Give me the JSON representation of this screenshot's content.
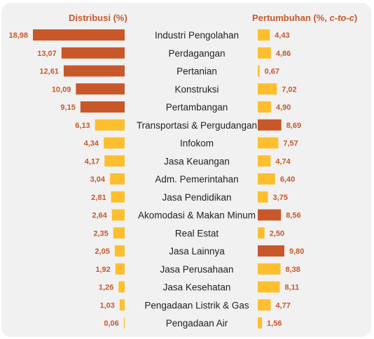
{
  "chart_data": {
    "type": "bar",
    "left_title": "Distribusi (%)",
    "right_title_prefix": "Pertumbuhan (%, ",
    "right_title_italic": "c-to-c",
    "right_title_suffix": ")",
    "categories": [
      "Industri Pengolahan",
      "Perdagangan",
      "Pertanian",
      "Konstruksi",
      "Pertambangan",
      "Transportasi & Pergudangan",
      "Infokom",
      "Jasa Keuangan",
      "Adm. Pemerintahan",
      "Jasa Pendidikan",
      "Akomodasi & Makan Minum",
      "Real Estat",
      "Jasa Lainnya",
      "Jasa Perusahaan",
      "Jasa Kesehatan",
      "Pengadaan Listrik & Gas",
      "Pengadaan Air"
    ],
    "distribution": [
      18.98,
      13.07,
      12.61,
      10.09,
      9.15,
      6.13,
      4.34,
      4.17,
      3.04,
      2.81,
      2.64,
      2.35,
      2.05,
      1.92,
      1.26,
      1.03,
      0.06
    ],
    "distribution_labels": [
      "18,98",
      "13,07",
      "12,61",
      "10,09",
      "9,15",
      "6,13",
      "4,34",
      "4,17",
      "3,04",
      "2,81",
      "2,64",
      "2,35",
      "2,05",
      "1,92",
      "1,26",
      "1,03",
      "0,06"
    ],
    "growth": [
      4.43,
      4.86,
      0.67,
      7.02,
      4.9,
      8.69,
      7.57,
      4.74,
      6.4,
      3.75,
      8.56,
      2.5,
      9.8,
      8.38,
      8.11,
      4.77,
      1.56
    ],
    "growth_labels": [
      "4,43",
      "4,86",
      "0,67",
      "7,02",
      "4,90",
      "8,69",
      "7,57",
      "4,74",
      "6,40",
      "3,75",
      "8,56",
      "2,50",
      "9,80",
      "8,38",
      "8,11",
      "4,77",
      "1,56"
    ],
    "highlight_colors": {
      "distribution": [
        "dark",
        "dark",
        "dark",
        "dark",
        "dark",
        "light",
        "light",
        "light",
        "light",
        "light",
        "light",
        "light",
        "light",
        "light",
        "light",
        "light",
        "light"
      ],
      "growth": [
        "light",
        "light",
        "light",
        "light",
        "light",
        "dark",
        "light",
        "light",
        "light",
        "light",
        "dark",
        "light",
        "dark",
        "light",
        "light",
        "light",
        "light"
      ]
    },
    "colors": {
      "dark": "#c8582a",
      "light": "#fdbf2d",
      "label": "#c8582a",
      "category": "#222222"
    }
  }
}
